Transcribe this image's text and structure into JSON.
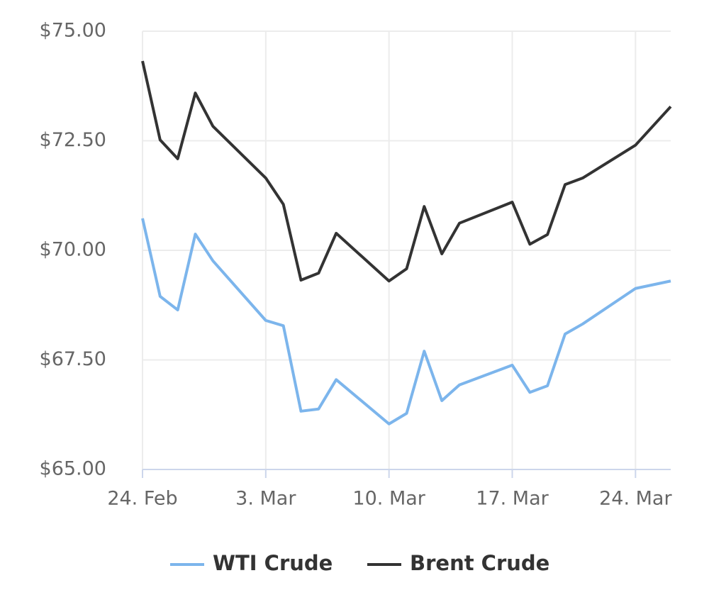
{
  "chart_data": {
    "type": "line",
    "x": [
      "24. Feb",
      "25. Feb",
      "26. Feb",
      "27. Feb",
      "28. Feb",
      "3. Mar",
      "4. Mar",
      "5. Mar",
      "6. Mar",
      "7. Mar",
      "10. Mar",
      "11. Mar",
      "12. Mar",
      "13. Mar",
      "14. Mar",
      "17. Mar",
      "18. Mar",
      "19. Mar",
      "20. Mar",
      "21. Mar",
      "24. Mar",
      "26. Mar"
    ],
    "series": [
      {
        "name": "WTI Crude",
        "color": "#7cb5ec",
        "values": [
          70.73,
          68.95,
          68.64,
          70.37,
          69.76,
          68.4,
          68.28,
          66.33,
          66.38,
          67.05,
          66.04,
          66.28,
          67.7,
          66.57,
          66.93,
          67.38,
          66.76,
          66.91,
          68.09,
          68.32,
          69.13,
          69.3
        ]
      },
      {
        "name": "Brent Crude",
        "color": "#333333",
        "values": [
          74.32,
          72.52,
          72.09,
          73.59,
          72.83,
          71.65,
          71.05,
          69.32,
          69.48,
          70.39,
          69.3,
          69.58,
          71.0,
          69.92,
          70.62,
          71.1,
          70.14,
          70.36,
          71.5,
          71.65,
          72.4,
          73.28
        ]
      }
    ],
    "xlim": [
      "24. Feb",
      "26. Mar"
    ],
    "xticks": [
      "24. Feb",
      "3. Mar",
      "10. Mar",
      "17. Mar",
      "24. Mar"
    ],
    "ylim": [
      65,
      75
    ],
    "yticks": [
      {
        "value": 65,
        "label": "$65.00"
      },
      {
        "value": 67.5,
        "label": "$67.50"
      },
      {
        "value": 70,
        "label": "$70.00"
      },
      {
        "value": 72.5,
        "label": "$72.50"
      },
      {
        "value": 75,
        "label": "$75.00"
      }
    ],
    "grid": true,
    "legend": "bottom"
  }
}
